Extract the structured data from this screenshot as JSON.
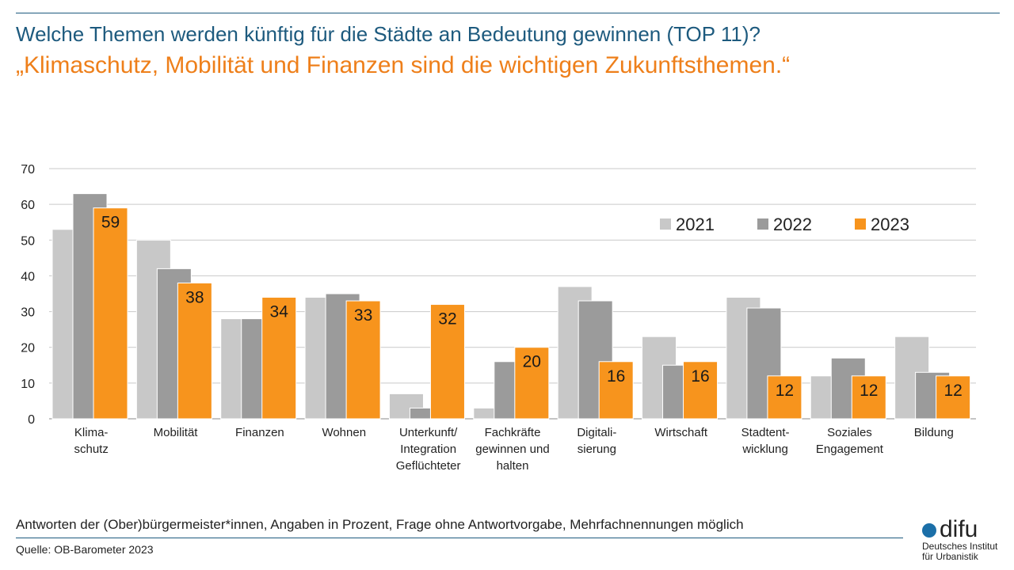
{
  "header": {
    "title": "Welche Themen werden künftig für die Städte an Bedeutung gewinnen (TOP 11)?",
    "subtitle": "„Klimaschutz, Mobilität und Finanzen sind die wichtigen Zukunftsthemen.“"
  },
  "footer": {
    "note": "Antworten der (Ober)bürgermeister*innen, Angaben in Prozent, Frage ohne Antwortvorgabe, Mehrfachnennungen möglich",
    "source": "Quelle: OB-Barometer 2023"
  },
  "logo": {
    "wordmark": "difu",
    "line1": "Deutsches Institut",
    "line2": "für Urbanistik",
    "dot_color": "#1b6fa8"
  },
  "chart_data": {
    "type": "bar",
    "title": "",
    "xlabel": "",
    "ylabel": "",
    "ylim": [
      0,
      70
    ],
    "yticks": [
      0,
      10,
      20,
      30,
      40,
      50,
      60,
      70
    ],
    "grid": true,
    "legend_position": "top-right",
    "categories": [
      [
        "Klima-",
        "schutz"
      ],
      [
        "Mobilität"
      ],
      [
        "Finanzen"
      ],
      [
        "Wohnen"
      ],
      [
        "Unterkunft/",
        "Integration",
        "Geflüchteter"
      ],
      [
        "Fachkräfte",
        "gewinnen und",
        "halten"
      ],
      [
        "Digitali-",
        "sierung"
      ],
      [
        "Wirtschaft"
      ],
      [
        "Stadtent-",
        "wicklung"
      ],
      [
        "Soziales",
        "Engagement"
      ],
      [
        "Bildung"
      ]
    ],
    "series": [
      {
        "name": "2021",
        "color": "#c8c8c8",
        "values": [
          53,
          50,
          28,
          34,
          7,
          3,
          37,
          23,
          34,
          12,
          23
        ],
        "show_labels": false
      },
      {
        "name": "2022",
        "color": "#9b9b9b",
        "values": [
          63,
          42,
          28,
          35,
          3,
          16,
          33,
          15,
          31,
          17,
          13
        ],
        "show_labels": false
      },
      {
        "name": "2023",
        "color": "#f7941d",
        "values": [
          59,
          38,
          34,
          33,
          32,
          20,
          16,
          16,
          12,
          12,
          12
        ],
        "show_labels": true
      }
    ]
  }
}
